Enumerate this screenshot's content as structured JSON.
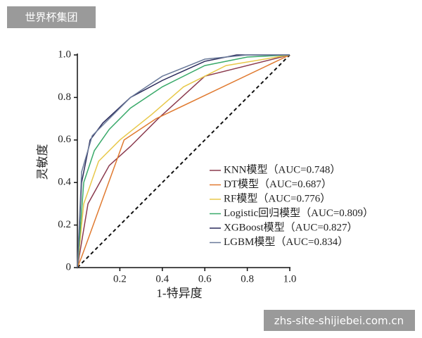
{
  "chart_data": {
    "type": "line",
    "xlabel": "1-特异度",
    "ylabel": "灵敏度",
    "xlim": [
      0,
      1
    ],
    "ylim": [
      0,
      1
    ],
    "xticks": [
      0.2,
      0.4,
      0.6,
      0.8,
      {
        "value": 1,
        "label": "1.0"
      }
    ],
    "yticks": [
      0,
      0.2,
      0.4,
      0.6,
      0.8,
      {
        "value": 1,
        "label": "1.0"
      }
    ],
    "series": [
      {
        "name": "KNN模型（AUC=0.748）",
        "color": "#8b3a4e",
        "x": [
          0,
          0.05,
          0.15,
          0.25,
          0.38,
          0.6,
          1
        ],
        "values": [
          0,
          0.3,
          0.48,
          0.57,
          0.7,
          0.9,
          1
        ]
      },
      {
        "name": "DT模型（AUC=0.687）",
        "color": "#e07a30",
        "x": [
          0,
          0.02,
          0.22,
          0.37,
          1
        ],
        "values": [
          0,
          0.05,
          0.6,
          0.7,
          1
        ]
      },
      {
        "name": "RF模型（AUC=0.776）",
        "color": "#e8c84a",
        "x": [
          0,
          0.03,
          0.1,
          0.2,
          0.35,
          0.5,
          0.7,
          1
        ],
        "values": [
          0,
          0.3,
          0.5,
          0.6,
          0.72,
          0.85,
          0.95,
          1
        ]
      },
      {
        "name": "Logistic回归模型（AUC=0.809）",
        "color": "#3aaa6a",
        "x": [
          0,
          0.03,
          0.08,
          0.15,
          0.25,
          0.4,
          0.6,
          0.8,
          1
        ],
        "values": [
          0,
          0.4,
          0.55,
          0.65,
          0.75,
          0.85,
          0.95,
          0.99,
          1
        ]
      },
      {
        "name": "XGBoost模型（AUC=0.827）",
        "color": "#2a2a5a",
        "x": [
          0,
          0.02,
          0.06,
          0.12,
          0.25,
          0.4,
          0.6,
          0.75,
          1
        ],
        "values": [
          0,
          0.4,
          0.6,
          0.68,
          0.8,
          0.88,
          0.97,
          1,
          1
        ]
      },
      {
        "name": "LGBM模型（AUC=0.834）",
        "color": "#6a7a9a",
        "x": [
          0,
          0.02,
          0.07,
          0.15,
          0.25,
          0.4,
          0.6,
          0.8,
          1
        ],
        "values": [
          0,
          0.45,
          0.62,
          0.7,
          0.8,
          0.9,
          0.98,
          1,
          1
        ]
      }
    ]
  },
  "watermarks": [
    "世界杯集团",
    "zhs-site-shijiebei.com.cn"
  ]
}
